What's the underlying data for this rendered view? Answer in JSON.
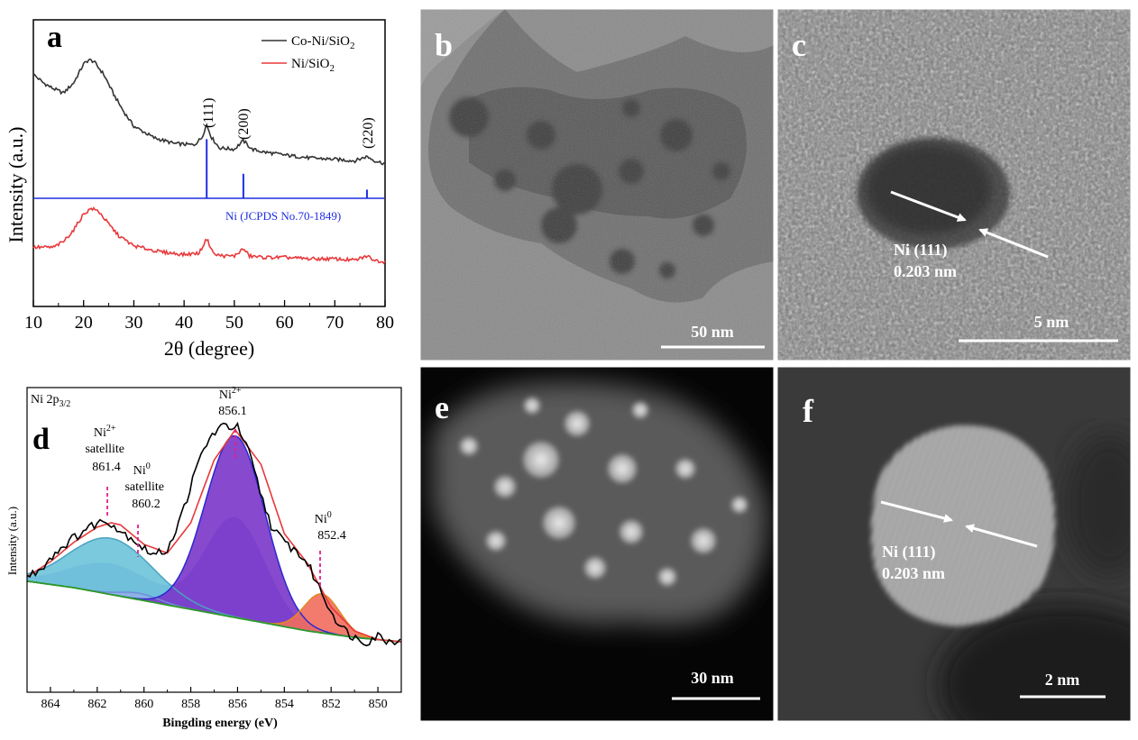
{
  "figure": {
    "panels": {
      "a": {
        "letter": "a",
        "chart_type": "line",
        "xlabel": "2θ (degree)",
        "ylabel": "Intensity (a.u.)",
        "xlim": [
          10,
          80
        ],
        "xticks": [
          "10",
          "20",
          "30",
          "40",
          "50",
          "60",
          "70",
          "80"
        ],
        "legend": {
          "position": "top-right",
          "entries": [
            {
              "label_main": "Co-Ni/SiO",
              "label_sub": "2",
              "color": "#333333"
            },
            {
              "label_main": "Ni/SiO",
              "label_sub": "2",
              "color": "#e8383a"
            }
          ]
        },
        "peak_labels": [
          "(111)",
          "(200)",
          "(220)"
        ],
        "reference": {
          "label": "Ni (JCPDS No.70-1849)",
          "color": "#1f2ee0"
        }
      },
      "b": {
        "letter": "b",
        "scale_bar": "50 nm"
      },
      "c": {
        "letter": "c",
        "scale_bar": "5 nm",
        "annotation_line1": "Ni (111)",
        "annotation_line2": "0.203 nm"
      },
      "d": {
        "letter": "d",
        "chart_type": "area",
        "title_main": "Ni 2p",
        "title_sub": "3/2",
        "xlabel": "Bingding energy (eV)",
        "ylabel": "Intensity (a.u.)",
        "xlim": [
          865,
          849
        ],
        "xticks": [
          "864",
          "862",
          "860",
          "858",
          "856",
          "854",
          "852",
          "850"
        ],
        "peaks": [
          {
            "name_main": "Ni",
            "name_sup": "2+",
            "line2": "satellite",
            "line3": "861.4"
          },
          {
            "name_main": "Ni",
            "name_sup": "0",
            "line2": "satellite",
            "line3": "860.2"
          },
          {
            "name_main": "Ni",
            "name_sup": "2+",
            "line2": "856.1",
            "line3": ""
          },
          {
            "name_main": "Ni",
            "name_sup": "0",
            "line2": "852.4",
            "line3": ""
          }
        ]
      },
      "e": {
        "letter": "e",
        "scale_bar": "30 nm"
      },
      "f": {
        "letter": "f",
        "scale_bar": "2 nm",
        "annotation_line1": "Ni (111)",
        "annotation_line2": "0.203 nm"
      }
    }
  },
  "chart_data": [
    {
      "type": "line",
      "title": "",
      "xlabel": "2θ (degree)",
      "ylabel": "Intensity (a.u.)",
      "xlim": [
        10,
        80
      ],
      "series": [
        {
          "name": "Co-Ni/SiO2",
          "x": [
            10,
            12,
            14,
            16,
            18,
            20,
            21,
            22,
            24,
            26,
            28,
            30,
            34,
            38,
            42,
            43.5,
            44.5,
            45.5,
            47,
            50,
            51.8,
            53.5,
            56,
            60,
            65,
            70,
            74,
            76.4,
            78,
            80
          ],
          "y": [
            0.86,
            0.8,
            0.76,
            0.73,
            0.8,
            0.93,
            0.96,
            0.95,
            0.86,
            0.72,
            0.6,
            0.5,
            0.42,
            0.38,
            0.37,
            0.42,
            0.51,
            0.42,
            0.35,
            0.34,
            0.4,
            0.34,
            0.32,
            0.3,
            0.28,
            0.27,
            0.26,
            0.29,
            0.26,
            0.24
          ]
        },
        {
          "name": "Ni/SiO2",
          "x": [
            10,
            14,
            16,
            18,
            20,
            21.5,
            23,
            25,
            27,
            30,
            35,
            40,
            43,
            44.5,
            46,
            48,
            50,
            51.8,
            53,
            56,
            60,
            65,
            70,
            74,
            76.4,
            78,
            80
          ],
          "y": [
            -0.34,
            -0.34,
            -0.3,
            -0.22,
            -0.11,
            -0.07,
            -0.09,
            -0.18,
            -0.26,
            -0.33,
            -0.37,
            -0.39,
            -0.38,
            -0.28,
            -0.39,
            -0.4,
            -0.4,
            -0.35,
            -0.4,
            -0.41,
            -0.41,
            -0.42,
            -0.42,
            -0.43,
            -0.4,
            -0.43,
            -0.44
          ]
        },
        {
          "name": "Ni (JCPDS No.70-1849)",
          "type": "stick",
          "baseline": 0,
          "x": [
            44.5,
            51.8,
            76.4
          ],
          "y": [
            0.41,
            0.17,
            0.06
          ]
        }
      ]
    },
    {
      "type": "area",
      "title": "Ni 2p3/2",
      "xlabel": "Bingding energy (eV)",
      "ylabel": "Intensity (a.u.)",
      "xlim": [
        865,
        849
      ],
      "series": [
        {
          "name": "raw",
          "x": [
            865,
            864.5,
            864,
            863.5,
            863,
            862.5,
            862,
            861.5,
            861,
            860.5,
            860,
            859.5,
            859,
            858.5,
            858,
            857.5,
            857,
            856.5,
            856,
            855.5,
            855,
            854.5,
            854,
            853.5,
            853,
            852.5,
            852,
            851.5,
            851,
            850.5,
            850,
            849.5,
            849
          ],
          "y": [
            0.3,
            0.33,
            0.39,
            0.44,
            0.48,
            0.52,
            0.55,
            0.56,
            0.51,
            0.48,
            0.43,
            0.4,
            0.43,
            0.55,
            0.72,
            0.88,
            0.97,
            1.0,
            0.99,
            0.87,
            0.68,
            0.52,
            0.46,
            0.42,
            0.36,
            0.25,
            0.14,
            0.06,
            0.02,
            0.0,
            0.03,
            0.0,
            0.02
          ]
        },
        {
          "name": "fit",
          "x": [
            865,
            864,
            863,
            862,
            861.4,
            861,
            860,
            859,
            858,
            857,
            856.1,
            855,
            854,
            853,
            852.4,
            852,
            851,
            850,
            849
          ],
          "y": [
            0.3,
            0.37,
            0.46,
            0.53,
            0.55,
            0.54,
            0.45,
            0.41,
            0.55,
            0.84,
            0.98,
            0.82,
            0.5,
            0.36,
            0.24,
            0.16,
            0.05,
            0.01,
            0.0
          ]
        },
        {
          "name": "background",
          "x": [
            865,
            863,
            861,
            859,
            857,
            855,
            853,
            851,
            849
          ],
          "y": [
            0.28,
            0.25,
            0.21,
            0.17,
            0.13,
            0.09,
            0.05,
            0.02,
            0.0
          ]
        },
        {
          "name": "Ni2+ satellite",
          "center": 861.4,
          "height": 0.26,
          "fwhm": 4.2
        },
        {
          "name": "Ni0 satellite",
          "center": 860.2,
          "height": 0.03,
          "fwhm": 2.0
        },
        {
          "name": "Ni2+",
          "center": 856.1,
          "height": 0.84,
          "fwhm": 3.0
        },
        {
          "name": "Ni0",
          "center": 852.4,
          "height": 0.18,
          "fwhm": 1.8
        }
      ]
    }
  ]
}
